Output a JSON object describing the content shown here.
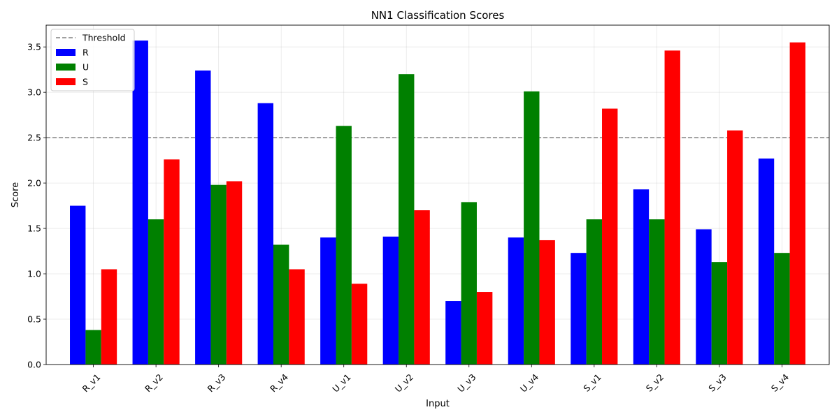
{
  "chart_data": {
    "type": "bar",
    "title": "NN1 Classification Scores",
    "xlabel": "Input",
    "ylabel": "Score",
    "categories": [
      "R_v1",
      "R_v2",
      "R_v3",
      "R_v4",
      "U_v1",
      "U_v2",
      "U_v3",
      "U_v4",
      "S_v1",
      "S_v2",
      "S_v3",
      "S_v4"
    ],
    "series": [
      {
        "name": "R",
        "color": "#0000ff",
        "values": [
          1.75,
          3.57,
          3.24,
          2.88,
          1.4,
          1.41,
          0.7,
          1.4,
          1.23,
          1.93,
          1.49,
          2.27
        ]
      },
      {
        "name": "U",
        "color": "#008000",
        "values": [
          0.38,
          1.6,
          1.98,
          1.32,
          2.63,
          3.2,
          1.79,
          3.01,
          1.6,
          1.6,
          1.13,
          1.23
        ]
      },
      {
        "name": "S",
        "color": "#ff0000",
        "values": [
          1.05,
          2.26,
          2.02,
          1.05,
          0.89,
          1.7,
          0.8,
          1.37,
          2.82,
          3.46,
          2.58,
          3.55
        ]
      }
    ],
    "threshold": {
      "label": "Threshold",
      "value": 2.5,
      "color": "#808080",
      "style": "dashed"
    },
    "ylim": [
      0,
      3.74
    ],
    "yticks": [
      "0.0",
      "0.5",
      "1.0",
      "1.5",
      "2.0",
      "2.5",
      "3.0",
      "3.5"
    ],
    "grid": true,
    "legend_position": "top-left"
  }
}
